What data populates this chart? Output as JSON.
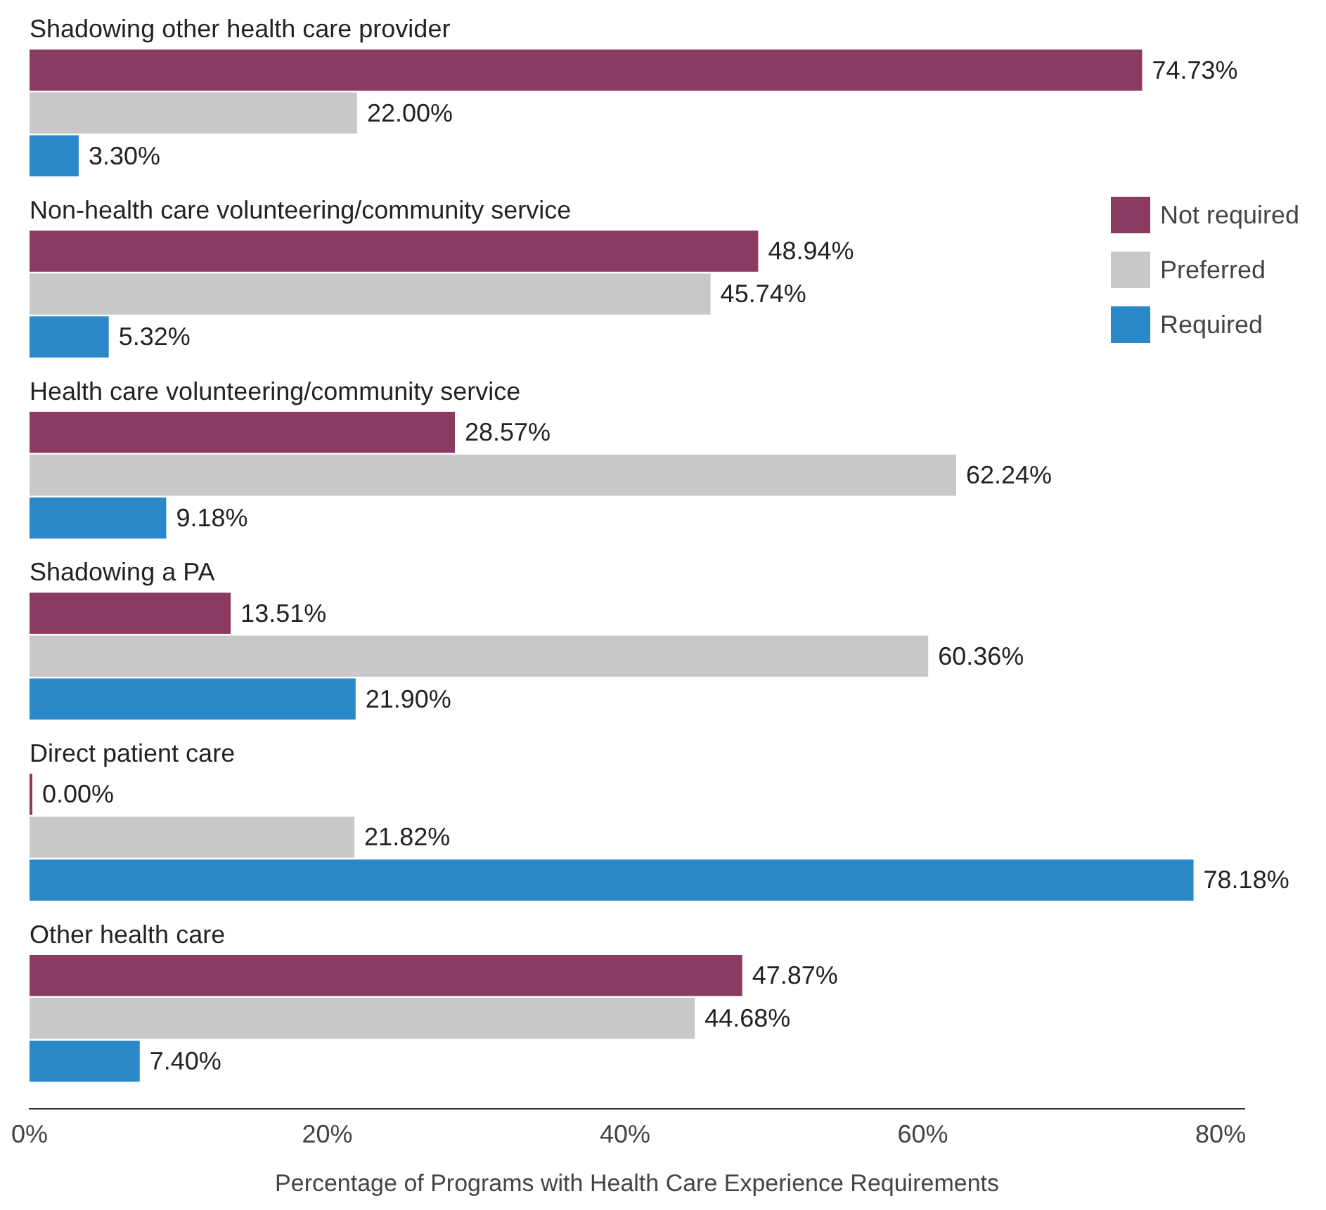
{
  "chart_data": {
    "type": "bar",
    "orientation": "horizontal",
    "xlabel": "Percentage of Programs with Health Care Experience Requirements",
    "categories": [
      "Shadowing other health care provider",
      "Non-health care volunteering/community service",
      "Health care volunteering/community service",
      "Shadowing a PA",
      "Direct patient care",
      "Other health care"
    ],
    "series": [
      {
        "name": "Not required",
        "color": "#8b3a62",
        "values": [
          74.73,
          48.94,
          28.57,
          13.51,
          0.0,
          47.87
        ],
        "value_labels": [
          "74.73%",
          "48.94%",
          "28.57%",
          "13.51%",
          "0.00%",
          "47.87%"
        ]
      },
      {
        "name": "Preferred",
        "color": "#c9c7c8",
        "values": [
          22.0,
          45.74,
          62.24,
          60.36,
          21.82,
          44.68
        ],
        "value_labels": [
          "22.00%",
          "45.74%",
          "62.24%",
          "60.36%",
          "21.82%",
          "44.68%"
        ]
      },
      {
        "name": "Required",
        "color": "#2a88c9",
        "values": [
          3.3,
          5.32,
          9.18,
          21.9,
          78.18,
          7.4
        ],
        "value_labels": [
          "3.30%",
          "5.32%",
          "9.18%",
          "21.90%",
          "78.18%",
          "7.40%"
        ]
      }
    ],
    "xlim": [
      0,
      81.6
    ],
    "xticks": [
      {
        "value": 0,
        "label": "0%"
      },
      {
        "value": 20,
        "label": "20%"
      },
      {
        "value": 40,
        "label": "40%"
      },
      {
        "value": 60,
        "label": "60%"
      },
      {
        "value": 80,
        "label": "80%"
      }
    ],
    "grid": false,
    "legend": "top right"
  }
}
